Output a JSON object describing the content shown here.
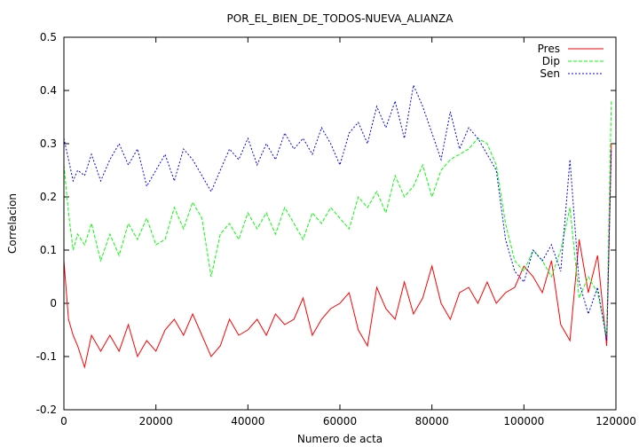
{
  "chart_data": {
    "type": "line",
    "title": "POR_EL_BIEN_DE_TODOS-NUEVA_ALIANZA",
    "xlabel": "Numero de acta",
    "ylabel": "Correlacion",
    "xlim": [
      0,
      120000
    ],
    "ylim": [
      -0.2,
      0.5
    ],
    "x_ticks": [
      0,
      20000,
      40000,
      60000,
      80000,
      100000,
      120000
    ],
    "x_tick_labels": [
      "0",
      "20000",
      "40000",
      "60000",
      "80000",
      "100000",
      "120000"
    ],
    "y_ticks": [
      -0.2,
      -0.1,
      0,
      0.1,
      0.2,
      0.3,
      0.4,
      0.5
    ],
    "y_tick_labels": [
      "-0.2",
      "-0.1",
      "0",
      "0.1",
      "0.2",
      "0.3",
      "0.4",
      "0.5"
    ],
    "grid": false,
    "legend_position": "top-right",
    "series": [
      {
        "name": "Pres",
        "color": "#ff0000",
        "dash": "solid",
        "x": [
          0,
          1000,
          2000,
          3000,
          4500,
          6000,
          8000,
          10000,
          12000,
          14000,
          16000,
          18000,
          20000,
          22000,
          24000,
          26000,
          28000,
          30000,
          32000,
          34000,
          36000,
          38000,
          40000,
          42000,
          44000,
          46000,
          48000,
          50000,
          52000,
          54000,
          56000,
          58000,
          60000,
          62000,
          64000,
          66000,
          68000,
          70000,
          72000,
          74000,
          76000,
          78000,
          80000,
          82000,
          84000,
          86000,
          88000,
          90000,
          92000,
          94000,
          96000,
          98000,
          100000,
          102000,
          104000,
          106000,
          108000,
          110000,
          112000,
          114000,
          116000,
          118000,
          119000
        ],
        "y": [
          0.08,
          -0.03,
          -0.06,
          -0.08,
          -0.12,
          -0.06,
          -0.09,
          -0.06,
          -0.09,
          -0.04,
          -0.1,
          -0.07,
          -0.09,
          -0.05,
          -0.03,
          -0.06,
          -0.02,
          -0.06,
          -0.1,
          -0.08,
          -0.03,
          -0.06,
          -0.05,
          -0.03,
          -0.06,
          -0.02,
          -0.04,
          -0.03,
          0.01,
          -0.06,
          -0.03,
          -0.01,
          0.0,
          0.02,
          -0.05,
          -0.08,
          0.03,
          -0.01,
          -0.03,
          0.04,
          -0.02,
          0.01,
          0.07,
          0.0,
          -0.03,
          0.02,
          0.03,
          0.0,
          0.04,
          0.0,
          0.02,
          0.03,
          0.07,
          0.05,
          0.02,
          0.08,
          -0.04,
          -0.07,
          0.12,
          0.02,
          0.09,
          -0.08,
          0.3
        ]
      },
      {
        "name": "Dip",
        "color": "#00ff00",
        "dash": "dashed",
        "x": [
          0,
          1000,
          2000,
          3000,
          4500,
          6000,
          8000,
          10000,
          12000,
          14000,
          16000,
          18000,
          20000,
          22000,
          24000,
          26000,
          28000,
          30000,
          32000,
          34000,
          36000,
          38000,
          40000,
          42000,
          44000,
          46000,
          48000,
          50000,
          52000,
          54000,
          56000,
          58000,
          60000,
          62000,
          64000,
          66000,
          68000,
          70000,
          72000,
          74000,
          76000,
          78000,
          80000,
          82000,
          84000,
          86000,
          88000,
          90000,
          92000,
          94000,
          96000,
          98000,
          100000,
          102000,
          104000,
          106000,
          108000,
          110000,
          112000,
          114000,
          116000,
          118000,
          119000
        ],
        "y": [
          0.26,
          0.17,
          0.1,
          0.13,
          0.11,
          0.15,
          0.08,
          0.13,
          0.09,
          0.15,
          0.12,
          0.16,
          0.11,
          0.12,
          0.18,
          0.14,
          0.19,
          0.16,
          0.05,
          0.13,
          0.15,
          0.12,
          0.17,
          0.14,
          0.17,
          0.13,
          0.18,
          0.15,
          0.12,
          0.17,
          0.15,
          0.18,
          0.16,
          0.14,
          0.2,
          0.18,
          0.21,
          0.17,
          0.24,
          0.2,
          0.22,
          0.26,
          0.2,
          0.25,
          0.27,
          0.28,
          0.29,
          0.31,
          0.3,
          0.26,
          0.15,
          0.08,
          0.06,
          0.1,
          0.08,
          0.05,
          0.1,
          0.18,
          0.01,
          0.05,
          0.02,
          -0.06,
          0.38
        ]
      },
      {
        "name": "Sen",
        "color": "#0000ff",
        "dash": "dotted",
        "x": [
          0,
          1000,
          2000,
          3000,
          4500,
          6000,
          8000,
          10000,
          12000,
          14000,
          16000,
          18000,
          20000,
          22000,
          24000,
          26000,
          28000,
          30000,
          32000,
          34000,
          36000,
          38000,
          40000,
          42000,
          44000,
          46000,
          48000,
          50000,
          52000,
          54000,
          56000,
          58000,
          60000,
          62000,
          64000,
          66000,
          68000,
          70000,
          72000,
          74000,
          76000,
          78000,
          80000,
          82000,
          84000,
          86000,
          88000,
          90000,
          92000,
          94000,
          96000,
          98000,
          100000,
          102000,
          104000,
          106000,
          108000,
          110000,
          112000,
          114000,
          116000,
          118000,
          119000
        ],
        "y": [
          0.31,
          0.27,
          0.23,
          0.25,
          0.24,
          0.28,
          0.23,
          0.27,
          0.3,
          0.26,
          0.29,
          0.22,
          0.25,
          0.28,
          0.23,
          0.29,
          0.27,
          0.24,
          0.21,
          0.25,
          0.29,
          0.27,
          0.31,
          0.26,
          0.3,
          0.27,
          0.32,
          0.29,
          0.31,
          0.28,
          0.33,
          0.3,
          0.26,
          0.32,
          0.34,
          0.3,
          0.37,
          0.33,
          0.38,
          0.31,
          0.41,
          0.37,
          0.32,
          0.27,
          0.36,
          0.29,
          0.33,
          0.31,
          0.28,
          0.25,
          0.12,
          0.06,
          0.04,
          0.1,
          0.08,
          0.11,
          0.06,
          0.27,
          0.04,
          -0.02,
          0.03,
          -0.07,
          0.29
        ]
      }
    ]
  }
}
